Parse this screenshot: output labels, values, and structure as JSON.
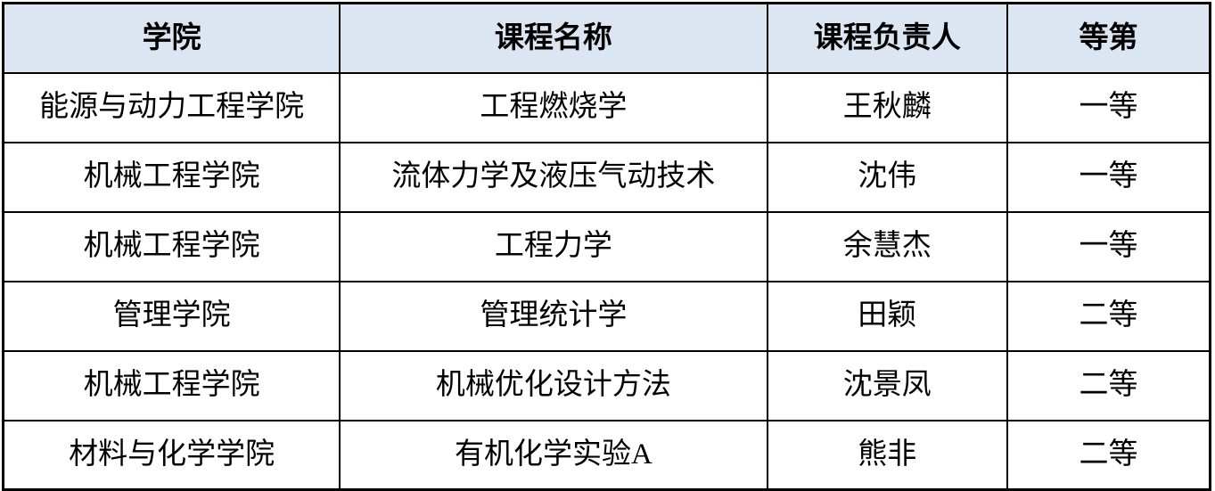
{
  "colors": {
    "header_bg": "#dce6f2",
    "border": "#000000",
    "text": "#000000"
  },
  "table": {
    "columns": [
      {
        "key": "college",
        "label": "学院"
      },
      {
        "key": "course",
        "label": "课程名称"
      },
      {
        "key": "leader",
        "label": "课程负责人"
      },
      {
        "key": "grade",
        "label": "等第"
      }
    ],
    "rows": [
      {
        "college": "能源与动力工程学院",
        "course": "工程燃烧学",
        "leader": "王秋麟",
        "grade": "一等"
      },
      {
        "college": "机械工程学院",
        "course": "流体力学及液压气动技术",
        "leader": "沈伟",
        "grade": "一等"
      },
      {
        "college": "机械工程学院",
        "course": "工程力学",
        "leader": "余慧杰",
        "grade": "一等"
      },
      {
        "college": "管理学院",
        "course": "管理统计学",
        "leader": "田颖",
        "grade": "二等"
      },
      {
        "college": "机械工程学院",
        "course": "机械优化设计方法",
        "leader": "沈景凤",
        "grade": "二等"
      },
      {
        "college": "材料与化学学院",
        "course": "有机化学实验A",
        "leader": "熊非",
        "grade": "二等"
      }
    ]
  }
}
